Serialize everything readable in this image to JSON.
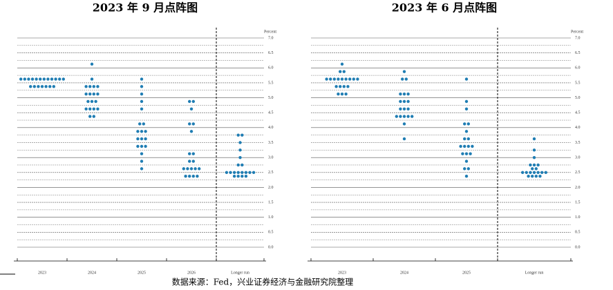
{
  "charts": [
    {
      "chart_data": {
        "type": "dot",
        "title": "2023 年 9 月点阵图",
        "ylabel": "Percent",
        "color": "#1f7db3",
        "ylim": [
          0,
          7
        ],
        "yticks": [
          {
            "value": 0,
            "label": "0.0"
          },
          0.5,
          {
            "value": 1,
            "label": "1.0"
          },
          1.5,
          {
            "value": 2,
            "label": "2.0"
          },
          2.5,
          {
            "value": 3,
            "label": "3.0"
          },
          3.5,
          {
            "value": 4,
            "label": "4.0"
          },
          4.5,
          {
            "value": 5,
            "label": "5.0"
          },
          5.5,
          {
            "value": 6,
            "label": "6.0"
          },
          6.5,
          {
            "value": 7,
            "label": "7.0"
          }
        ],
        "categories": [
          "2023",
          "2024",
          "2025",
          "2026",
          "Longer run"
        ],
        "dots": [
          [
            {
              "value": 5.625,
              "count": 12
            },
            {
              "value": 5.375,
              "count": 7
            }
          ],
          [
            {
              "value": 6.125,
              "count": 1
            },
            {
              "value": 5.625,
              "count": 1
            },
            {
              "value": 5.375,
              "count": 4
            },
            {
              "value": 5.125,
              "count": 4
            },
            {
              "value": 4.875,
              "count": 3
            },
            {
              "value": 4.625,
              "count": 4
            },
            {
              "value": 4.375,
              "count": 2
            }
          ],
          [
            {
              "value": 5.625,
              "count": 1
            },
            {
              "value": 5.375,
              "count": 1
            },
            {
              "value": 5.125,
              "count": 1
            },
            {
              "value": 4.875,
              "count": 1
            },
            {
              "value": 4.625,
              "count": 1
            },
            {
              "value": 4.125,
              "count": 2
            },
            {
              "value": 3.875,
              "count": 3
            },
            {
              "value": 3.625,
              "count": 3
            },
            {
              "value": 3.375,
              "count": 3
            },
            {
              "value": 3.125,
              "count": 1
            },
            {
              "value": 2.875,
              "count": 1
            },
            {
              "value": 2.625,
              "count": 1
            }
          ],
          [
            {
              "value": 4.875,
              "count": 2
            },
            {
              "value": 4.625,
              "count": 1
            },
            {
              "value": 4.125,
              "count": 2
            },
            {
              "value": 3.875,
              "count": 1
            },
            {
              "value": 3.125,
              "count": 2
            },
            {
              "value": 2.875,
              "count": 2
            },
            {
              "value": 2.625,
              "count": 5
            },
            {
              "value": 2.375,
              "count": 4
            }
          ],
          [
            {
              "value": 3.75,
              "count": 2
            },
            {
              "value": 3.5,
              "count": 1
            },
            {
              "value": 3.25,
              "count": 1
            },
            {
              "value": 3,
              "count": 1
            },
            {
              "value": 2.75,
              "count": 2
            },
            {
              "value": 2.5,
              "count": 8
            },
            {
              "value": 2.375,
              "count": 4
            }
          ]
        ]
      }
    },
    {
      "chart_data": {
        "type": "dot",
        "title": "2023 年 6 月点阵图",
        "ylabel": "Percent",
        "color": "#1f7db3",
        "ylim": [
          0,
          7
        ],
        "yticks": [
          {
            "value": 0,
            "label": "0.0"
          },
          0.5,
          {
            "value": 1,
            "label": "1.0"
          },
          1.5,
          {
            "value": 2,
            "label": "2.0"
          },
          2.5,
          {
            "value": 3,
            "label": "3.0"
          },
          3.5,
          {
            "value": 4,
            "label": "4.0"
          },
          4.5,
          {
            "value": 5,
            "label": "5.0"
          },
          5.5,
          {
            "value": 6,
            "label": "6.0"
          },
          6.5,
          {
            "value": 7,
            "label": "7.0"
          }
        ],
        "categories": [
          "2023",
          "2024",
          "2025",
          "Longer run"
        ],
        "dots": [
          [
            {
              "value": 6.125,
              "count": 1
            },
            {
              "value": 5.875,
              "count": 2
            },
            {
              "value": 5.625,
              "count": 9
            },
            {
              "value": 5.375,
              "count": 4
            },
            {
              "value": 5.125,
              "count": 3
            }
          ],
          [
            {
              "value": 5.875,
              "count": 1
            },
            {
              "value": 5.625,
              "count": 2
            },
            {
              "value": 5.125,
              "count": 3
            },
            {
              "value": 4.875,
              "count": 3
            },
            {
              "value": 4.625,
              "count": 3
            },
            {
              "value": 4.375,
              "count": 5
            },
            {
              "value": 4.125,
              "count": 1
            },
            {
              "value": 3.625,
              "count": 1
            }
          ],
          [
            {
              "value": 5.625,
              "count": 1
            },
            {
              "value": 4.875,
              "count": 1
            },
            {
              "value": 4.625,
              "count": 1
            },
            {
              "value": 4.125,
              "count": 2
            },
            {
              "value": 3.875,
              "count": 1
            },
            {
              "value": 3.625,
              "count": 2
            },
            {
              "value": 3.375,
              "count": 4
            },
            {
              "value": 3.125,
              "count": 3
            },
            {
              "value": 2.875,
              "count": 1
            },
            {
              "value": 2.625,
              "count": 2
            },
            {
              "value": 2.375,
              "count": 1
            }
          ],
          [
            {
              "value": 3.625,
              "count": 1
            },
            {
              "value": 3.25,
              "count": 1
            },
            {
              "value": 3,
              "count": 1
            },
            {
              "value": 2.75,
              "count": 3
            },
            {
              "value": 2.625,
              "count": 2
            },
            {
              "value": 2.5,
              "count": 7
            },
            {
              "value": 2.375,
              "count": 4
            }
          ]
        ]
      }
    }
  ],
  "source": "数据来源：Fed，兴业证券经济与金融研究院整理"
}
